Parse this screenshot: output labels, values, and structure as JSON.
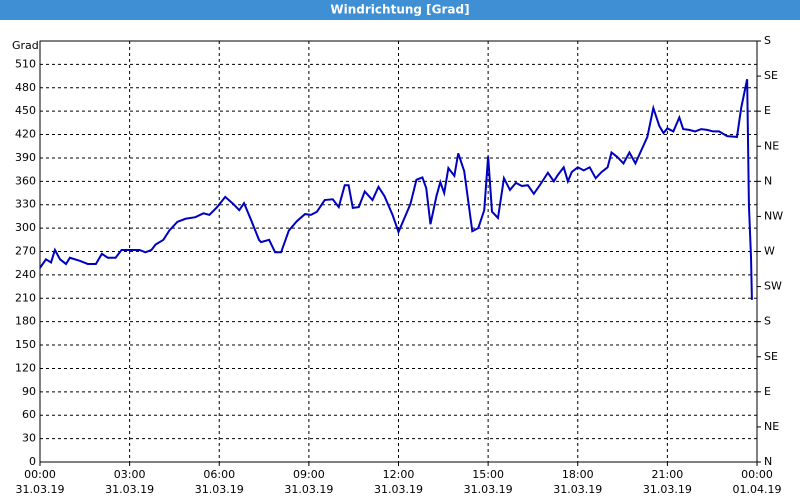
{
  "chart_data": {
    "type": "line",
    "title": "Windrichtung [Grad]",
    "y_label": "Grad",
    "xlim": [
      0,
      24
    ],
    "ylim": [
      0,
      540
    ],
    "y2lim": [
      0,
      540
    ],
    "grid": true,
    "xticks": [
      {
        "value": 0,
        "label": [
          "00:00",
          "31.03.19"
        ]
      },
      {
        "value": 3,
        "label": [
          "03:00",
          "31.03.19"
        ]
      },
      {
        "value": 6,
        "label": [
          "06:00",
          "31.03.19"
        ]
      },
      {
        "value": 9,
        "label": [
          "09:00",
          "31.03.19"
        ]
      },
      {
        "value": 12,
        "label": [
          "12:00",
          "31.03.19"
        ]
      },
      {
        "value": 15,
        "label": [
          "15:00",
          "31.03.19"
        ]
      },
      {
        "value": 18,
        "label": [
          "18:00",
          "31.03.19"
        ]
      },
      {
        "value": 21,
        "label": [
          "21:00",
          "31.03.19"
        ]
      },
      {
        "value": 24,
        "label": [
          "00:00",
          "01.04.19"
        ]
      }
    ],
    "yticks": [
      0,
      30,
      60,
      90,
      120,
      150,
      180,
      210,
      240,
      270,
      300,
      330,
      360,
      390,
      420,
      450,
      480,
      510
    ],
    "y2ticks": [
      {
        "value": 0,
        "label": "N"
      },
      {
        "value": 45,
        "label": "NE"
      },
      {
        "value": 90,
        "label": "E"
      },
      {
        "value": 135,
        "label": "SE"
      },
      {
        "value": 180,
        "label": "S"
      },
      {
        "value": 225,
        "label": "SW"
      },
      {
        "value": 270,
        "label": "W"
      },
      {
        "value": 315,
        "label": "NW"
      },
      {
        "value": 360,
        "label": "N"
      },
      {
        "value": 405,
        "label": "NE"
      },
      {
        "value": 450,
        "label": "E"
      },
      {
        "value": 495,
        "label": "SE"
      },
      {
        "value": 540,
        "label": "S"
      }
    ],
    "series": [
      {
        "color": "#0000c0",
        "x": [
          0,
          0.2,
          0.37,
          0.5,
          0.67,
          0.87,
          1,
          1.33,
          1.6,
          1.87,
          2.07,
          2.27,
          2.53,
          2.73,
          3.33,
          3.53,
          3.73,
          3.87,
          4.13,
          4.33,
          4.6,
          4.87,
          5.2,
          5.47,
          5.67,
          5.93,
          6.2,
          6.47,
          6.67,
          6.83,
          7.07,
          7.33,
          7.4,
          7.67,
          7.87,
          8.07,
          8.33,
          8.6,
          8.87,
          9.07,
          9.27,
          9.53,
          9.8,
          10,
          10.2,
          10.33,
          10.47,
          10.67,
          10.87,
          11.13,
          11.33,
          11.53,
          11.8,
          12,
          12.2,
          12.4,
          12.6,
          12.8,
          12.93,
          13.07,
          13.27,
          13.4,
          13.53,
          13.67,
          13.87,
          14,
          14.2,
          14.47,
          14.67,
          14.87,
          15,
          15.13,
          15.33,
          15.53,
          15.73,
          15.93,
          16.13,
          16.33,
          16.53,
          16.73,
          17,
          17.2,
          17.33,
          17.53,
          17.67,
          17.8,
          18,
          18.2,
          18.4,
          18.6,
          18.8,
          19,
          19.13,
          19.33,
          19.53,
          19.73,
          19.93,
          20.13,
          20.33,
          20.53,
          20.73,
          20.87,
          21,
          21.2,
          21.4,
          21.53,
          21.73,
          21.93,
          22.13,
          22.33,
          22.53,
          22.73,
          23,
          23.33,
          23.47,
          23.67,
          23.73,
          23.8,
          23.83
        ],
        "values": [
          249,
          260,
          256,
          272,
          260,
          254,
          262,
          258,
          254,
          254,
          267,
          262,
          262,
          272,
          272,
          269,
          272,
          279,
          285,
          297,
          308,
          312,
          314,
          319,
          317,
          327,
          340,
          331,
          323,
          332,
          310,
          285,
          282,
          285,
          269,
          269,
          297,
          309,
          318,
          317,
          321,
          336,
          337,
          327,
          355,
          355,
          326,
          327,
          347,
          336,
          353,
          341,
          317,
          295,
          313,
          331,
          362,
          365,
          351,
          305,
          341,
          359,
          345,
          377,
          367,
          396,
          373,
          296,
          300,
          323,
          392,
          321,
          313,
          364,
          349,
          358,
          354,
          355,
          344,
          355,
          371,
          360,
          368,
          378,
          360,
          372,
          378,
          374,
          378,
          364,
          372,
          378,
          397,
          391,
          383,
          397,
          383,
          400,
          417,
          454,
          431,
          422,
          428,
          424,
          442,
          427,
          426,
          424,
          427,
          426,
          424,
          424,
          418,
          417,
          454,
          491,
          329,
          262,
          208
        ]
      }
    ]
  }
}
